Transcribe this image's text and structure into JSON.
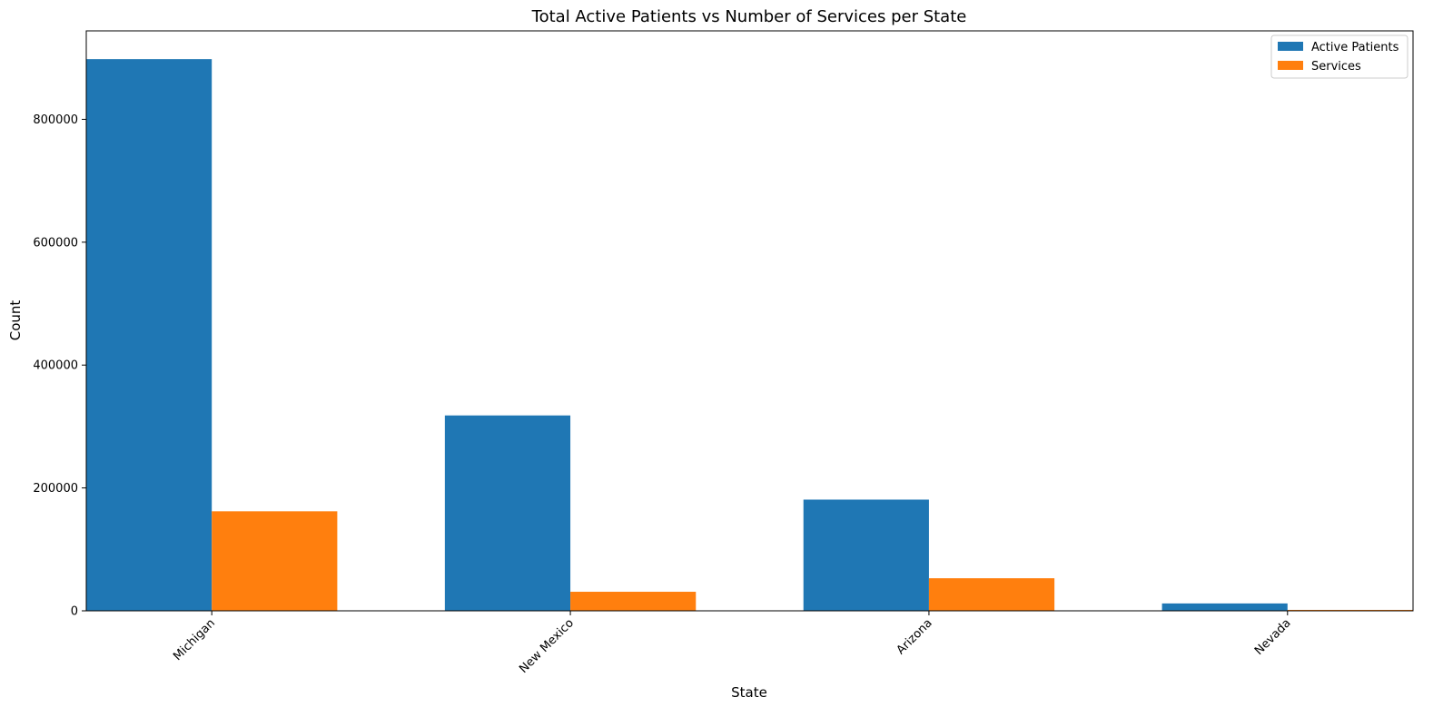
{
  "chart_data": {
    "type": "bar",
    "title": "Total Active Patients vs Number of Services per State",
    "xlabel": "State",
    "ylabel": "Count",
    "categories": [
      "Michigan",
      "New Mexico",
      "Arizona",
      "Nevada"
    ],
    "series": [
      {
        "name": "Active Patients",
        "color": "#1f77b4",
        "values": [
          898000,
          318000,
          181000,
          12000
        ]
      },
      {
        "name": "Services",
        "color": "#ff7f0e",
        "values": [
          162000,
          31000,
          53000,
          1500
        ]
      }
    ],
    "ylim": [
      0,
      944000
    ],
    "yticks": [
      0,
      200000,
      400000,
      600000,
      800000
    ],
    "legend_position": "top-right",
    "grid": false
  }
}
